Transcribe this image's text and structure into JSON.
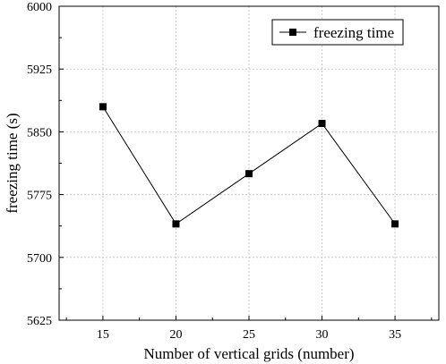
{
  "chart_data": {
    "type": "line",
    "xlabel": "Number of vertical grids (number)",
    "ylabel": "freezing time (s)",
    "xlim": [
      12,
      38
    ],
    "ylim": [
      5625,
      6000
    ],
    "xticks": [
      15,
      20,
      25,
      30,
      35
    ],
    "yticks": [
      5625,
      5700,
      5775,
      5850,
      5925,
      6000
    ],
    "grid": true,
    "legend_position": "top-right",
    "series": [
      {
        "name": "freezing time",
        "marker": "square",
        "color": "#000000",
        "x": [
          15,
          20,
          25,
          30,
          35
        ],
        "values": [
          5880,
          5740,
          5800,
          5860,
          5740
        ]
      }
    ]
  }
}
